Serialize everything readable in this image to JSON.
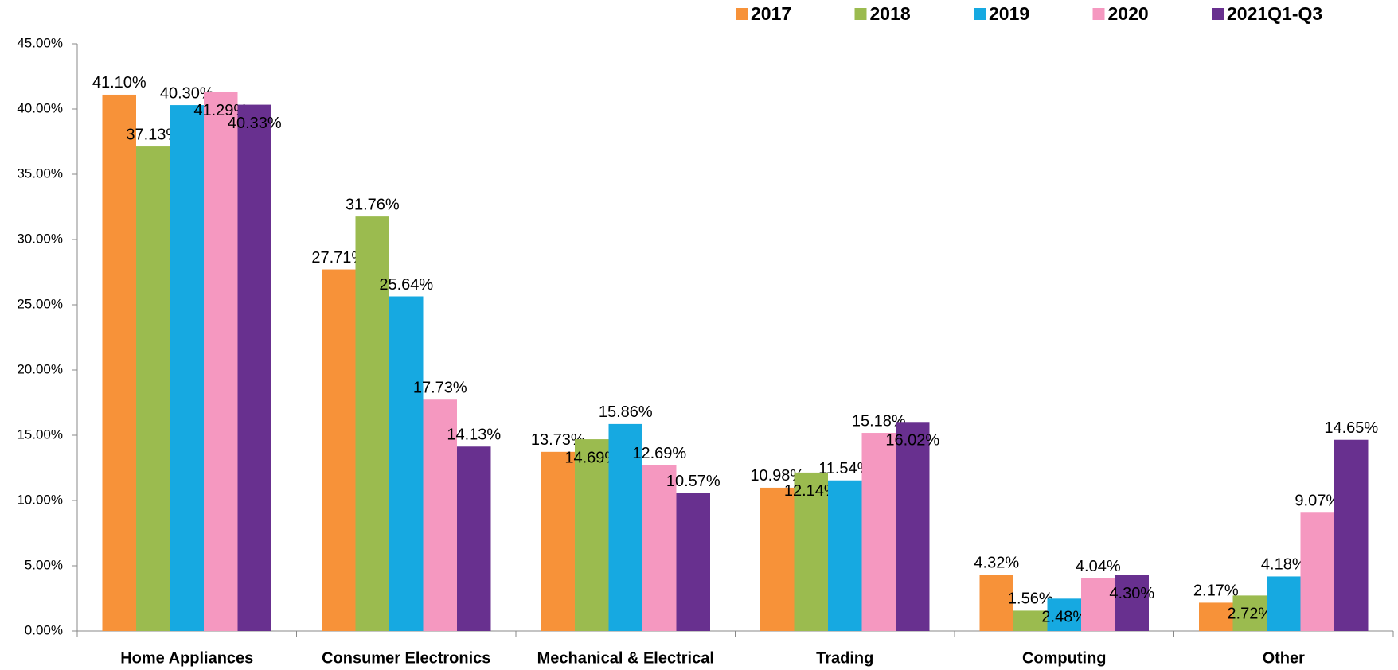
{
  "chart_data": {
    "type": "bar",
    "categories": [
      "Home Appliances",
      "Consumer Electronics",
      "Mechanical & Electrical",
      "Trading",
      "Computing",
      "Other"
    ],
    "series": [
      {
        "name": "2017",
        "color": "#f79239",
        "values": [
          41.1,
          27.71,
          13.73,
          10.98,
          4.32,
          2.17
        ],
        "value_labels": [
          "41.10%",
          "27.71%",
          "13.73%",
          "10.98%",
          "4.32%",
          "2.17%"
        ]
      },
      {
        "name": "2018",
        "color": "#9bbb4f",
        "values": [
          37.13,
          31.76,
          14.69,
          12.14,
          1.56,
          2.72
        ],
        "value_labels": [
          "37.13%",
          "31.76%",
          "14.69%",
          "12.14%",
          "1.56%",
          "2.72%"
        ]
      },
      {
        "name": "2019",
        "color": "#16a9e1",
        "values": [
          40.3,
          25.64,
          15.86,
          11.54,
          2.48,
          4.18
        ],
        "value_labels": [
          "40.30%",
          "25.64%",
          "15.86%",
          "11.54%",
          "2.48%",
          "4.18%"
        ]
      },
      {
        "name": "2020",
        "color": "#f598c0",
        "values": [
          41.29,
          17.73,
          12.69,
          15.18,
          4.04,
          9.07
        ],
        "value_labels": [
          "41.29%",
          "17.73%",
          "12.69%",
          "15.18%",
          "4.04%",
          "9.07%"
        ]
      },
      {
        "name": "2021Q1-Q3",
        "color": "#68308f",
        "values": [
          40.33,
          14.13,
          10.57,
          16.02,
          4.3,
          14.65
        ],
        "value_labels": [
          "40.33%",
          "14.13%",
          "10.57%",
          "16.02%",
          "4.30%",
          "14.65%"
        ]
      }
    ],
    "ylim": [
      0,
      45
    ],
    "yticks": [
      {
        "value": 0,
        "label": "0.00%"
      },
      {
        "value": 5,
        "label": "5.00%"
      },
      {
        "value": 10,
        "label": "10.00%"
      },
      {
        "value": 15,
        "label": "15.00%"
      },
      {
        "value": 20,
        "label": "20.00%"
      },
      {
        "value": 25,
        "label": "25.00%"
      },
      {
        "value": 30,
        "label": "30.00%"
      },
      {
        "value": 35,
        "label": "35.00%"
      },
      {
        "value": 40,
        "label": "40.00%"
      },
      {
        "value": 45,
        "label": "45.00%"
      }
    ],
    "legend": "top-right",
    "grid": false
  }
}
